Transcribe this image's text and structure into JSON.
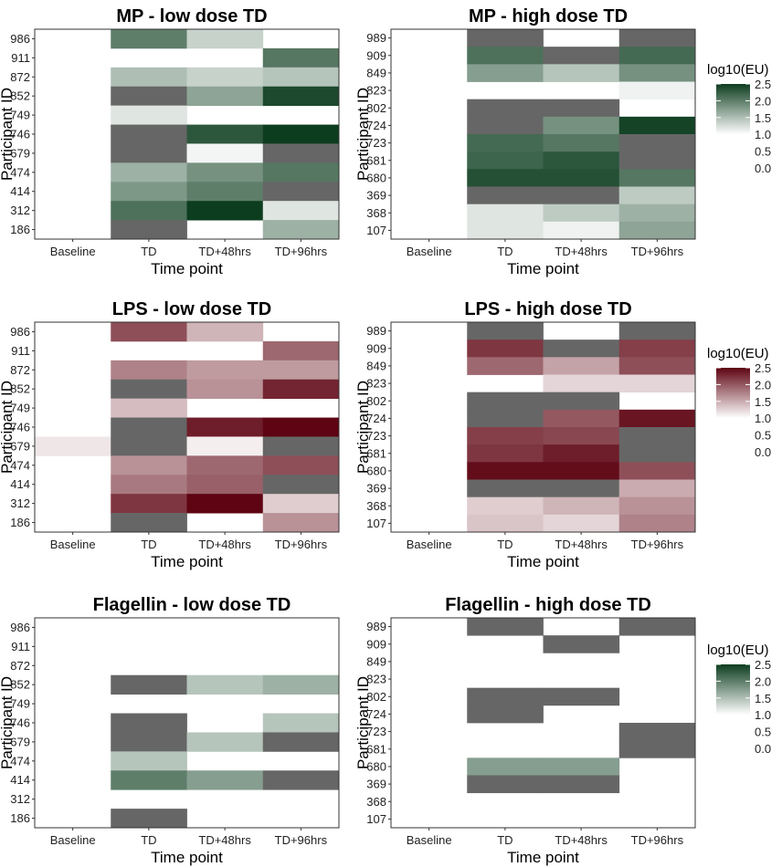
{
  "chart_data": {
    "type": "heatmap",
    "figure_layout": "3 rows x 2 columns of heatmaps",
    "x_title": "Time point",
    "y_title": "Participant ID",
    "x_categories": [
      "Baseline",
      "TD",
      "TD+48hrs",
      "TD+96hrs"
    ],
    "missing_color": "#666666",
    "legends": [
      {
        "title": "log10(EU)",
        "ticks": [
          "2.5",
          "2.0",
          "1.5",
          "1.0",
          "0.5",
          "0.0"
        ],
        "tick_values": [
          2.5,
          2.0,
          1.5,
          1.0,
          0.5,
          0.0
        ],
        "color_low": "#ffffff",
        "color_high": "#0d3d1f",
        "low_threshold": 1.0
      },
      {
        "title": "log10(EU)",
        "ticks": [
          "2.5",
          "2.0",
          "1.5",
          "1.0",
          "0.5",
          "0.0"
        ],
        "tick_values": [
          2.5,
          2.0,
          1.5,
          1.0,
          0.5,
          0.0
        ],
        "color_low": "#ffffff",
        "color_high": "#5e0412",
        "low_threshold": 1.0
      },
      {
        "title": "log10(EU)",
        "ticks": [
          "2.5",
          "2.0",
          "1.5",
          "1.0",
          "0.5",
          "0.0"
        ],
        "tick_values": [
          2.5,
          2.0,
          1.5,
          1.0,
          0.5,
          0.0
        ],
        "color_low": "#ffffff",
        "color_high": "#0d3d1f",
        "low_threshold": 1.0
      }
    ],
    "panels": [
      {
        "title": "MP - low dose TD",
        "color_scale": "green",
        "participants": [
          "986",
          "911",
          "872",
          "852",
          "749",
          "746",
          "679",
          "474",
          "414",
          "312",
          "186"
        ],
        "values": [
          [
            null,
            2.0,
            1.35,
            null
          ],
          [
            null,
            null,
            null,
            2.05
          ],
          [
            null,
            1.5,
            1.35,
            1.45
          ],
          [
            null,
            "NA",
            1.7,
            2.4
          ],
          [
            null,
            1.2,
            null,
            null
          ],
          [
            null,
            "NA",
            2.3,
            2.5
          ],
          [
            null,
            "NA",
            1.05,
            "NA"
          ],
          [
            null,
            1.6,
            1.85,
            2.05
          ],
          [
            null,
            1.8,
            2.0,
            "NA"
          ],
          [
            null,
            2.1,
            2.5,
            1.2
          ],
          [
            null,
            "NA",
            null,
            1.6
          ]
        ]
      },
      {
        "title": "MP - high dose TD",
        "color_scale": "green",
        "participants": [
          "989",
          "909",
          "849",
          "823",
          "802",
          "724",
          "723",
          "681",
          "680",
          "369",
          "368",
          "107"
        ],
        "values": [
          [
            null,
            "NA",
            null,
            "NA"
          ],
          [
            null,
            2.1,
            "NA",
            2.15
          ],
          [
            null,
            1.75,
            1.45,
            1.85
          ],
          [
            null,
            null,
            null,
            1.1
          ],
          [
            null,
            "NA",
            "NA",
            null
          ],
          [
            null,
            "NA",
            1.85,
            2.45
          ],
          [
            null,
            2.15,
            2.05,
            "NA"
          ],
          [
            null,
            2.2,
            2.3,
            "NA"
          ],
          [
            null,
            2.35,
            2.35,
            2.05
          ],
          [
            null,
            "NA",
            "NA",
            1.4
          ],
          [
            null,
            1.2,
            1.4,
            1.6
          ],
          [
            null,
            1.2,
            1.1,
            1.7
          ]
        ]
      },
      {
        "title": "LPS - low dose TD",
        "color_scale": "red",
        "participants": [
          "986",
          "911",
          "872",
          "852",
          "749",
          "746",
          "679",
          "474",
          "414",
          "312",
          "186"
        ],
        "values": [
          [
            null,
            2.05,
            1.45,
            null
          ],
          [
            null,
            null,
            null,
            1.9
          ],
          [
            null,
            1.75,
            1.6,
            1.6
          ],
          [
            null,
            "NA",
            1.65,
            2.3
          ],
          [
            null,
            1.4,
            null,
            null
          ],
          [
            null,
            "NA",
            2.35,
            2.5
          ],
          [
            1.15,
            "NA",
            1.1,
            "NA"
          ],
          [
            null,
            1.65,
            1.9,
            2.05
          ],
          [
            null,
            1.8,
            1.95,
            "NA"
          ],
          [
            null,
            2.2,
            2.5,
            1.3
          ],
          [
            null,
            "NA",
            null,
            1.65
          ]
        ]
      },
      {
        "title": "LPS - high dose TD",
        "color_scale": "red",
        "participants": [
          "989",
          "909",
          "849",
          "823",
          "802",
          "724",
          "723",
          "681",
          "680",
          "369",
          "368",
          "107"
        ],
        "values": [
          [
            null,
            "NA",
            null,
            "NA"
          ],
          [
            null,
            2.2,
            "NA",
            2.15
          ],
          [
            null,
            1.9,
            1.55,
            2.05
          ],
          [
            null,
            null,
            1.25,
            1.25
          ],
          [
            null,
            "NA",
            "NA",
            null
          ],
          [
            null,
            "NA",
            2.0,
            2.4
          ],
          [
            null,
            2.15,
            2.1,
            "NA"
          ],
          [
            null,
            2.2,
            2.35,
            "NA"
          ],
          [
            null,
            2.45,
            2.45,
            2.05
          ],
          [
            null,
            "NA",
            "NA",
            1.5
          ],
          [
            null,
            1.3,
            1.45,
            1.65
          ],
          [
            null,
            1.35,
            1.25,
            1.75
          ]
        ]
      },
      {
        "title": "Flagellin - low dose TD",
        "color_scale": "green",
        "participants": [
          "986",
          "911",
          "872",
          "852",
          "749",
          "746",
          "679",
          "474",
          "414",
          "312",
          "186"
        ],
        "values": [
          [
            null,
            null,
            null,
            null
          ],
          [
            null,
            null,
            null,
            null
          ],
          [
            null,
            null,
            null,
            null
          ],
          [
            null,
            "NA",
            1.45,
            1.6
          ],
          [
            null,
            null,
            null,
            null
          ],
          [
            null,
            "NA",
            null,
            1.45
          ],
          [
            null,
            "NA",
            1.45,
            "NA"
          ],
          [
            null,
            1.45,
            null,
            null
          ],
          [
            null,
            2.0,
            1.75,
            "NA"
          ],
          [
            null,
            null,
            null,
            null
          ],
          [
            null,
            "NA",
            null,
            null
          ]
        ]
      },
      {
        "title": "Flagellin - high dose TD",
        "color_scale": "green",
        "participants": [
          "989",
          "909",
          "849",
          "823",
          "802",
          "724",
          "723",
          "681",
          "680",
          "369",
          "368",
          "107"
        ],
        "values": [
          [
            null,
            "NA",
            null,
            "NA"
          ],
          [
            null,
            null,
            "NA",
            null
          ],
          [
            null,
            null,
            null,
            null
          ],
          [
            null,
            null,
            null,
            null
          ],
          [
            null,
            "NA",
            "NA",
            null
          ],
          [
            null,
            "NA",
            null,
            null
          ],
          [
            null,
            null,
            null,
            "NA"
          ],
          [
            null,
            null,
            null,
            "NA"
          ],
          [
            null,
            1.75,
            1.75,
            null
          ],
          [
            null,
            "NA",
            "NA",
            null
          ],
          [
            null,
            null,
            null,
            null
          ],
          [
            null,
            null,
            null,
            null
          ]
        ]
      }
    ]
  }
}
